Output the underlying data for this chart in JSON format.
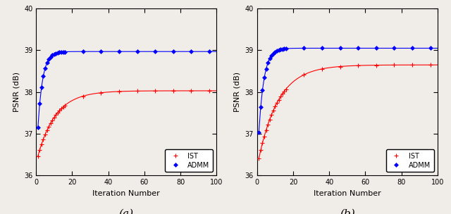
{
  "subplot_a": {
    "ist_end": 38.03,
    "admm_end": 38.97,
    "ist_rate": 0.1,
    "admm_rate": 0.38,
    "start": 36.3,
    "ylim": [
      36,
      40
    ],
    "xlim": [
      0,
      100
    ],
    "xticks": [
      0,
      20,
      40,
      60,
      80,
      100
    ],
    "yticks": [
      36,
      37,
      38,
      39,
      40
    ],
    "xlabel": "Iteration Number",
    "ylabel": "PSNR (dB)",
    "label": "(a)"
  },
  "subplot_b": {
    "ist_end": 38.65,
    "admm_end": 39.05,
    "ist_rate": 0.09,
    "admm_rate": 0.35,
    "start": 36.2,
    "ylim": [
      36,
      40
    ],
    "xlim": [
      0,
      100
    ],
    "xticks": [
      0,
      20,
      40,
      60,
      80,
      100
    ],
    "yticks": [
      36,
      37,
      38,
      39,
      40
    ],
    "xlabel": "Iteration Number",
    "ylabel": "PSNR (dB)",
    "label": "(b)"
  },
  "ist_color": "#ff0000",
  "admm_color": "#0000ff",
  "line_width": 0.8,
  "legend_ist": "IST",
  "legend_admm": "ADMM",
  "figure_facecolor": "#f0ece8",
  "axes_facecolor": "#f0ece8",
  "marker_every_dense": 1,
  "dense_up_to": 15,
  "sparse_step": 10
}
